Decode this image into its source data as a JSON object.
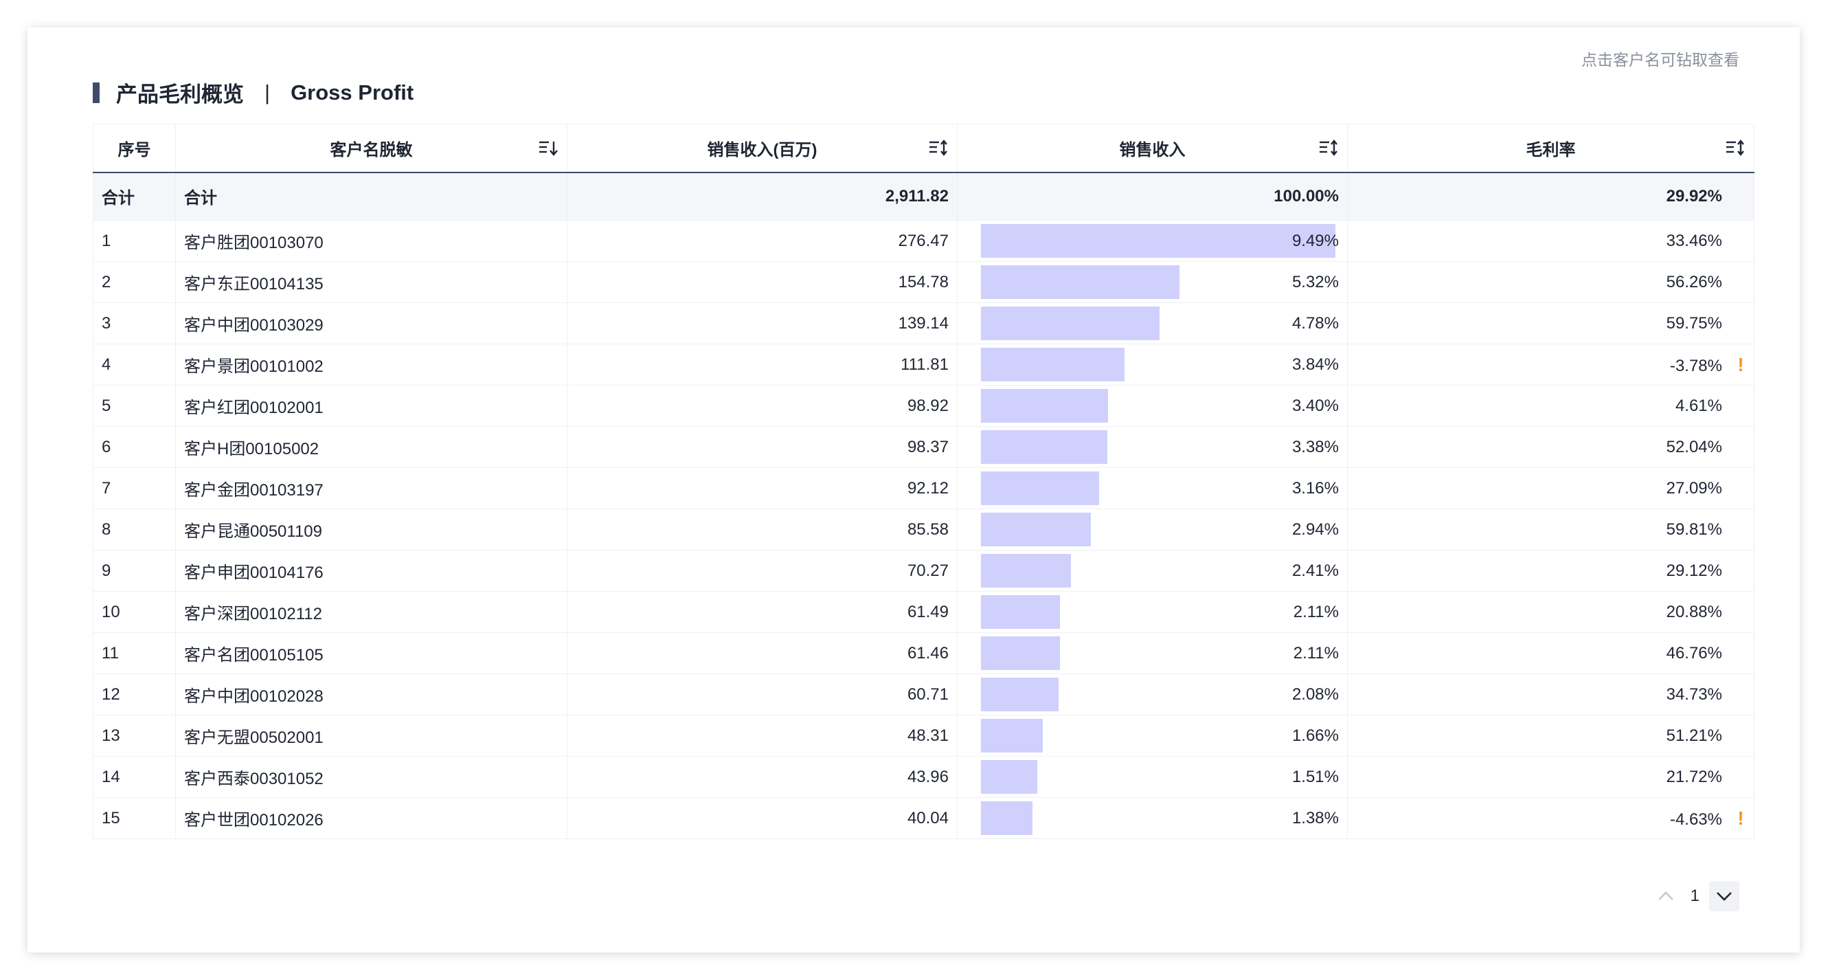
{
  "hint": "点击客户名可钻取查看",
  "title": {
    "cn": "产品毛利概览",
    "sep": "|",
    "en": "Gross Profit"
  },
  "columns": {
    "index": "序号",
    "customer": "客户名脱敏",
    "revenue_m": "销售收入(百万)",
    "revenue_share": "销售收入",
    "margin": "毛利率"
  },
  "total": {
    "index": "合计",
    "customer": "合计",
    "revenue_m": "2,911.82",
    "revenue_share": "100.00%",
    "margin": "29.92%"
  },
  "rows": [
    {
      "index": "1",
      "customer": "客户胜团00103070",
      "revenue_m": "276.47",
      "share": "9.49%",
      "share_value": 9.49,
      "margin": "33.46%",
      "warn": false
    },
    {
      "index": "2",
      "customer": "客户东正00104135",
      "revenue_m": "154.78",
      "share": "5.32%",
      "share_value": 5.32,
      "margin": "56.26%",
      "warn": false
    },
    {
      "index": "3",
      "customer": "客户中团00103029",
      "revenue_m": "139.14",
      "share": "4.78%",
      "share_value": 4.78,
      "margin": "59.75%",
      "warn": false
    },
    {
      "index": "4",
      "customer": "客户景团00101002",
      "revenue_m": "111.81",
      "share": "3.84%",
      "share_value": 3.84,
      "margin": "-3.78%",
      "warn": true
    },
    {
      "index": "5",
      "customer": "客户红团00102001",
      "revenue_m": "98.92",
      "share": "3.40%",
      "share_value": 3.4,
      "margin": "4.61%",
      "warn": false
    },
    {
      "index": "6",
      "customer": "客户H团00105002",
      "revenue_m": "98.37",
      "share": "3.38%",
      "share_value": 3.38,
      "margin": "52.04%",
      "warn": false
    },
    {
      "index": "7",
      "customer": "客户金团00103197",
      "revenue_m": "92.12",
      "share": "3.16%",
      "share_value": 3.16,
      "margin": "27.09%",
      "warn": false
    },
    {
      "index": "8",
      "customer": "客户昆通00501109",
      "revenue_m": "85.58",
      "share": "2.94%",
      "share_value": 2.94,
      "margin": "59.81%",
      "warn": false
    },
    {
      "index": "9",
      "customer": "客户申团00104176",
      "revenue_m": "70.27",
      "share": "2.41%",
      "share_value": 2.41,
      "margin": "29.12%",
      "warn": false
    },
    {
      "index": "10",
      "customer": "客户深团00102112",
      "revenue_m": "61.49",
      "share": "2.11%",
      "share_value": 2.11,
      "margin": "20.88%",
      "warn": false
    },
    {
      "index": "11",
      "customer": "客户名团00105105",
      "revenue_m": "61.46",
      "share": "2.11%",
      "share_value": 2.11,
      "margin": "46.76%",
      "warn": false
    },
    {
      "index": "12",
      "customer": "客户中团00102028",
      "revenue_m": "60.71",
      "share": "2.08%",
      "share_value": 2.08,
      "margin": "34.73%",
      "warn": false
    },
    {
      "index": "13",
      "customer": "客户无盟00502001",
      "revenue_m": "48.31",
      "share": "1.66%",
      "share_value": 1.66,
      "margin": "51.21%",
      "warn": false
    },
    {
      "index": "14",
      "customer": "客户西泰00301052",
      "revenue_m": "43.96",
      "share": "1.51%",
      "share_value": 1.51,
      "margin": "21.72%",
      "warn": false
    },
    {
      "index": "15",
      "customer": "客户世团00102026",
      "revenue_m": "40.04",
      "share": "1.38%",
      "share_value": 1.38,
      "margin": "-4.63%",
      "warn": true
    }
  ],
  "warn_symbol": "!",
  "pagination": {
    "page": "1"
  },
  "icons": {
    "sort_desc": "sort-descending-icon",
    "sort_both": "sort-both-icon",
    "prev": "chevron-up-icon",
    "next": "chevron-down-icon"
  },
  "colors": {
    "accent": "#3d4a6b",
    "bar": "#cfd0fc",
    "warn": "#f59a23"
  }
}
